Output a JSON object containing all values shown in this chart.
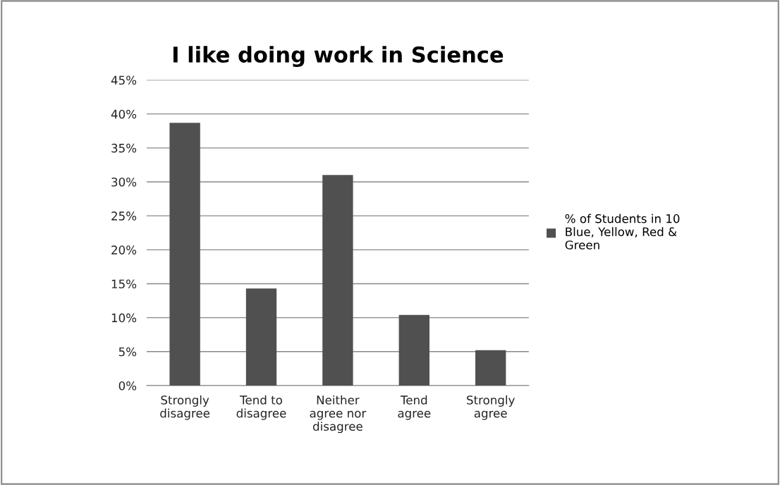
{
  "chart_data": {
    "type": "bar",
    "title": "I like doing work in Science",
    "categories": [
      "Strongly disagree",
      "Tend to disagree",
      "Neither agree nor disagree",
      "Tend agree",
      "Strongly agree"
    ],
    "series": [
      {
        "name": "% of Students in 10 Blue, Yellow, Red & Green",
        "color": "#505050",
        "values": [
          38.7,
          14.3,
          31.0,
          10.4,
          5.2
        ]
      }
    ],
    "ylim": [
      0,
      45
    ],
    "yticks": [
      {
        "value": 0,
        "label": "0%"
      },
      {
        "value": 5,
        "label": "5%"
      },
      {
        "value": 10,
        "label": "10%"
      },
      {
        "value": 15,
        "label": "15%"
      },
      {
        "value": 20,
        "label": "20%"
      },
      {
        "value": 25,
        "label": "25%"
      },
      {
        "value": 30,
        "label": "30%"
      },
      {
        "value": 35,
        "label": "35%"
      },
      {
        "value": 40,
        "label": "40%"
      },
      {
        "value": 45,
        "label": "45%"
      }
    ],
    "grid": "y",
    "legend": "right"
  }
}
